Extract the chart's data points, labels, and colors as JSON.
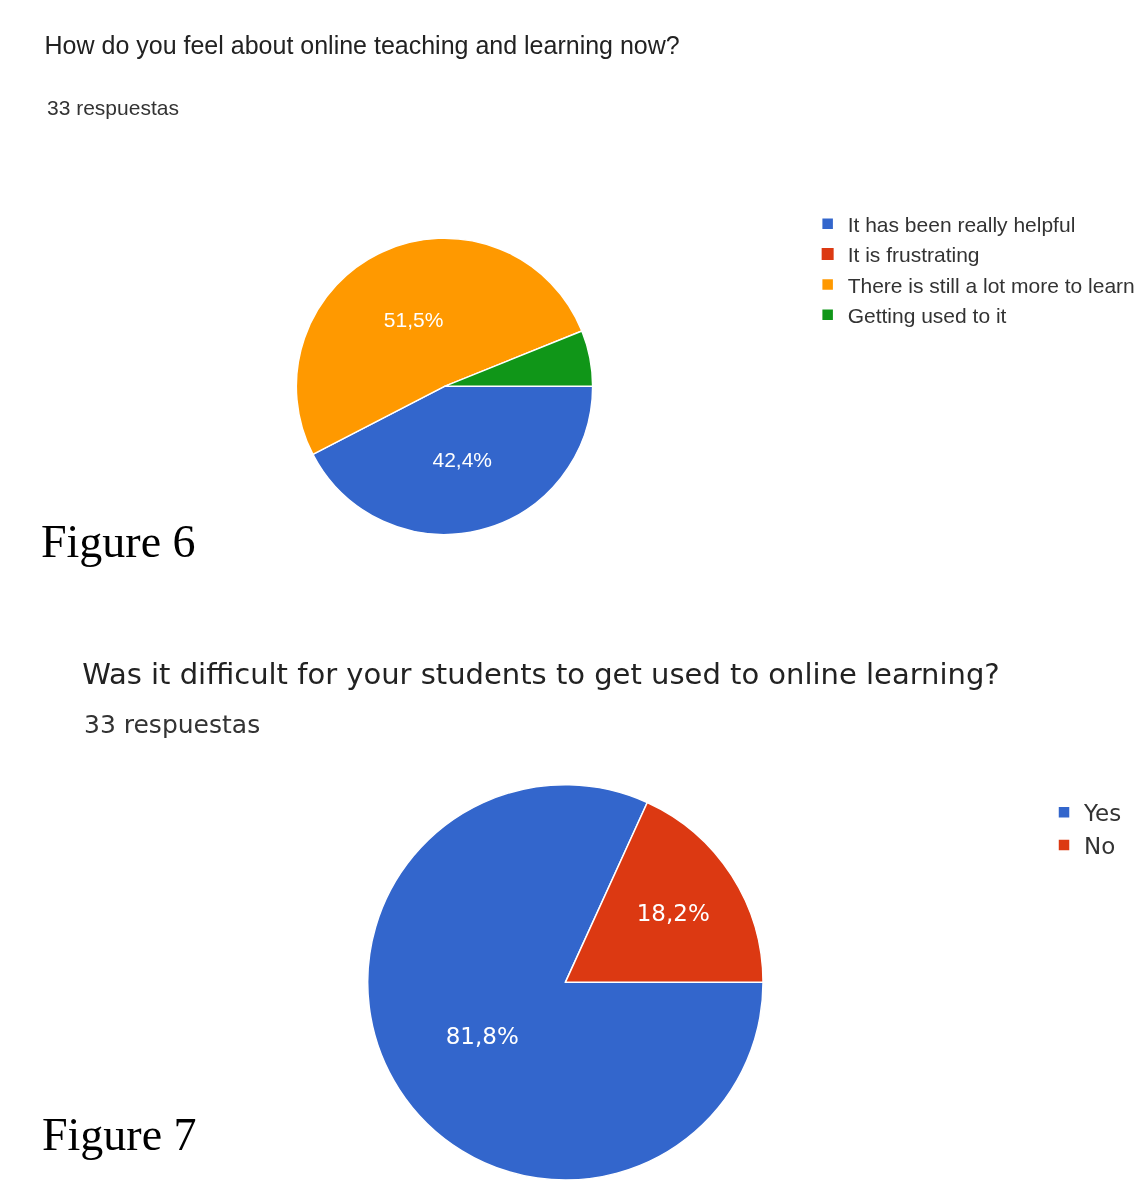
{
  "chart_data": [
    {
      "type": "pie",
      "title": "How do you feel about online teaching and learning now?",
      "subtitle": "33 respuestas",
      "categories": [
        "It has been really helpful",
        "It is frustrating",
        "There is still a lot more to learn",
        "Getting used to it"
      ],
      "values": [
        42.4,
        0,
        51.5,
        6.1
      ],
      "value_labels": [
        "42,4%",
        null,
        "51,5%",
        null
      ],
      "colors": [
        "#3366cc",
        "#dc3912",
        "#ff9900",
        "#109618"
      ],
      "legend": "top right",
      "annotations": [
        "Figure 6"
      ]
    },
    {
      "type": "pie",
      "title": "Was it difficult for your students to get used to online learning?",
      "subtitle": "33 respuestas",
      "categories": [
        "Yes",
        "No"
      ],
      "values": [
        81.8,
        18.2
      ],
      "value_labels": [
        "81,8%",
        "18,2%"
      ],
      "colors": [
        "#3366cc",
        "#dc3912"
      ],
      "legend": "top right",
      "annotations": [
        "Figure 7"
      ]
    }
  ]
}
